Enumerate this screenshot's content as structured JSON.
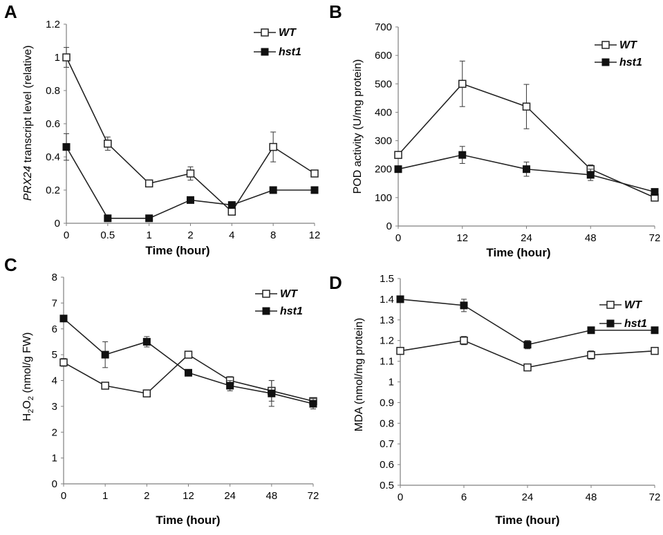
{
  "chart_data": [
    {
      "panel": "A",
      "type": "line",
      "xlabel": "Time (hour)",
      "ylabel_italic": "PRX24",
      "ylabel_rest": " transcript level (relative)",
      "categories": [
        "0",
        "0.5",
        "1",
        "2",
        "4",
        "8",
        "12"
      ],
      "ylim": [
        0,
        1.2
      ],
      "yticks": [
        0,
        0.2,
        0.4,
        0.6,
        0.8,
        1,
        1.2
      ],
      "ytick_labels": [
        "0",
        "0.2",
        "0.4",
        "0.6",
        "0.8",
        "1",
        "1.2"
      ],
      "series": [
        {
          "name": "WT",
          "marker": "open",
          "values": [
            1.0,
            0.48,
            0.24,
            0.3,
            0.07,
            0.46,
            0.3
          ],
          "errors": [
            0.06,
            0.04,
            0.01,
            0.04,
            0.01,
            0.09,
            0.01
          ]
        },
        {
          "name": "hst1",
          "marker": "filled",
          "values": [
            0.46,
            0.03,
            0.03,
            0.14,
            0.11,
            0.2,
            0.2
          ],
          "errors": [
            0.08,
            0.0,
            0.0,
            0.01,
            0.01,
            0.0,
            0.0
          ]
        }
      ]
    },
    {
      "panel": "B",
      "type": "line",
      "xlabel": "Time (hour)",
      "ylabel_italic": "",
      "ylabel_rest": "POD activity (U/mg protein)",
      "categories": [
        "0",
        "12",
        "24",
        "48",
        "72"
      ],
      "ylim": [
        0,
        700
      ],
      "yticks": [
        0,
        100,
        200,
        300,
        400,
        500,
        600,
        700
      ],
      "ytick_labels": [
        "0",
        "100",
        "200",
        "300",
        "400",
        "500",
        "600",
        "700"
      ],
      "series": [
        {
          "name": "WT",
          "marker": "open",
          "values": [
            250,
            500,
            420,
            200,
            100
          ],
          "errors": [
            0,
            80,
            78,
            15,
            10
          ]
        },
        {
          "name": "hst1",
          "marker": "filled",
          "values": [
            200,
            250,
            200,
            180,
            120
          ],
          "errors": [
            0,
            30,
            25,
            20,
            0
          ]
        }
      ]
    },
    {
      "panel": "C",
      "type": "line",
      "xlabel": "Time (hour)",
      "ylabel_prefix": "H",
      "ylabel_sub": "2",
      "ylabel_mid": "O",
      "ylabel_sub2": "2",
      "ylabel_suffix": " (nmol/g FW)",
      "categories": [
        "0",
        "1",
        "2",
        "12",
        "24",
        "48",
        "72"
      ],
      "ylim": [
        0,
        8
      ],
      "yticks": [
        0,
        1,
        2,
        3,
        4,
        5,
        6,
        7,
        8
      ],
      "ytick_labels": [
        "0",
        "1",
        "2",
        "3",
        "4",
        "5",
        "6",
        "7",
        "8"
      ],
      "series": [
        {
          "name": "WT",
          "marker": "open",
          "values": [
            4.7,
            3.8,
            3.5,
            5.0,
            4.0,
            3.6,
            3.2
          ],
          "errors": [
            0.15,
            0.05,
            0.05,
            0.05,
            0.15,
            0.4,
            0.1
          ]
        },
        {
          "name": "hst1",
          "marker": "filled",
          "values": [
            6.4,
            5.0,
            5.5,
            4.3,
            3.8,
            3.5,
            3.1
          ],
          "errors": [
            0.05,
            0.5,
            0.2,
            0.05,
            0.2,
            0.5,
            0.2
          ]
        }
      ]
    },
    {
      "panel": "D",
      "type": "line",
      "xlabel": "Time (hour)",
      "ylabel_italic": "",
      "ylabel_rest": "MDA (nmol/mg protein)",
      "categories": [
        "0",
        "6",
        "24",
        "48",
        "72"
      ],
      "ylim": [
        0.5,
        1.5
      ],
      "yticks": [
        0.5,
        0.6,
        0.7,
        0.8,
        0.9,
        1.0,
        1.1,
        1.2,
        1.3,
        1.4,
        1.5
      ],
      "ytick_labels": [
        "0.5",
        "0.6",
        "0.7",
        "0.8",
        "0.9",
        "1",
        "1.1",
        "1.2",
        "1.3",
        "1.4",
        "1.5"
      ],
      "series": [
        {
          "name": "WT",
          "marker": "open",
          "values": [
            1.15,
            1.2,
            1.07,
            1.13,
            1.15
          ],
          "errors": [
            0.0,
            0.02,
            0.0,
            0.02,
            0.0
          ]
        },
        {
          "name": "hst1",
          "marker": "filled",
          "values": [
            1.4,
            1.37,
            1.18,
            1.25,
            1.25
          ],
          "errors": [
            0.0,
            0.03,
            0.02,
            0.0,
            0.0
          ]
        }
      ]
    }
  ]
}
